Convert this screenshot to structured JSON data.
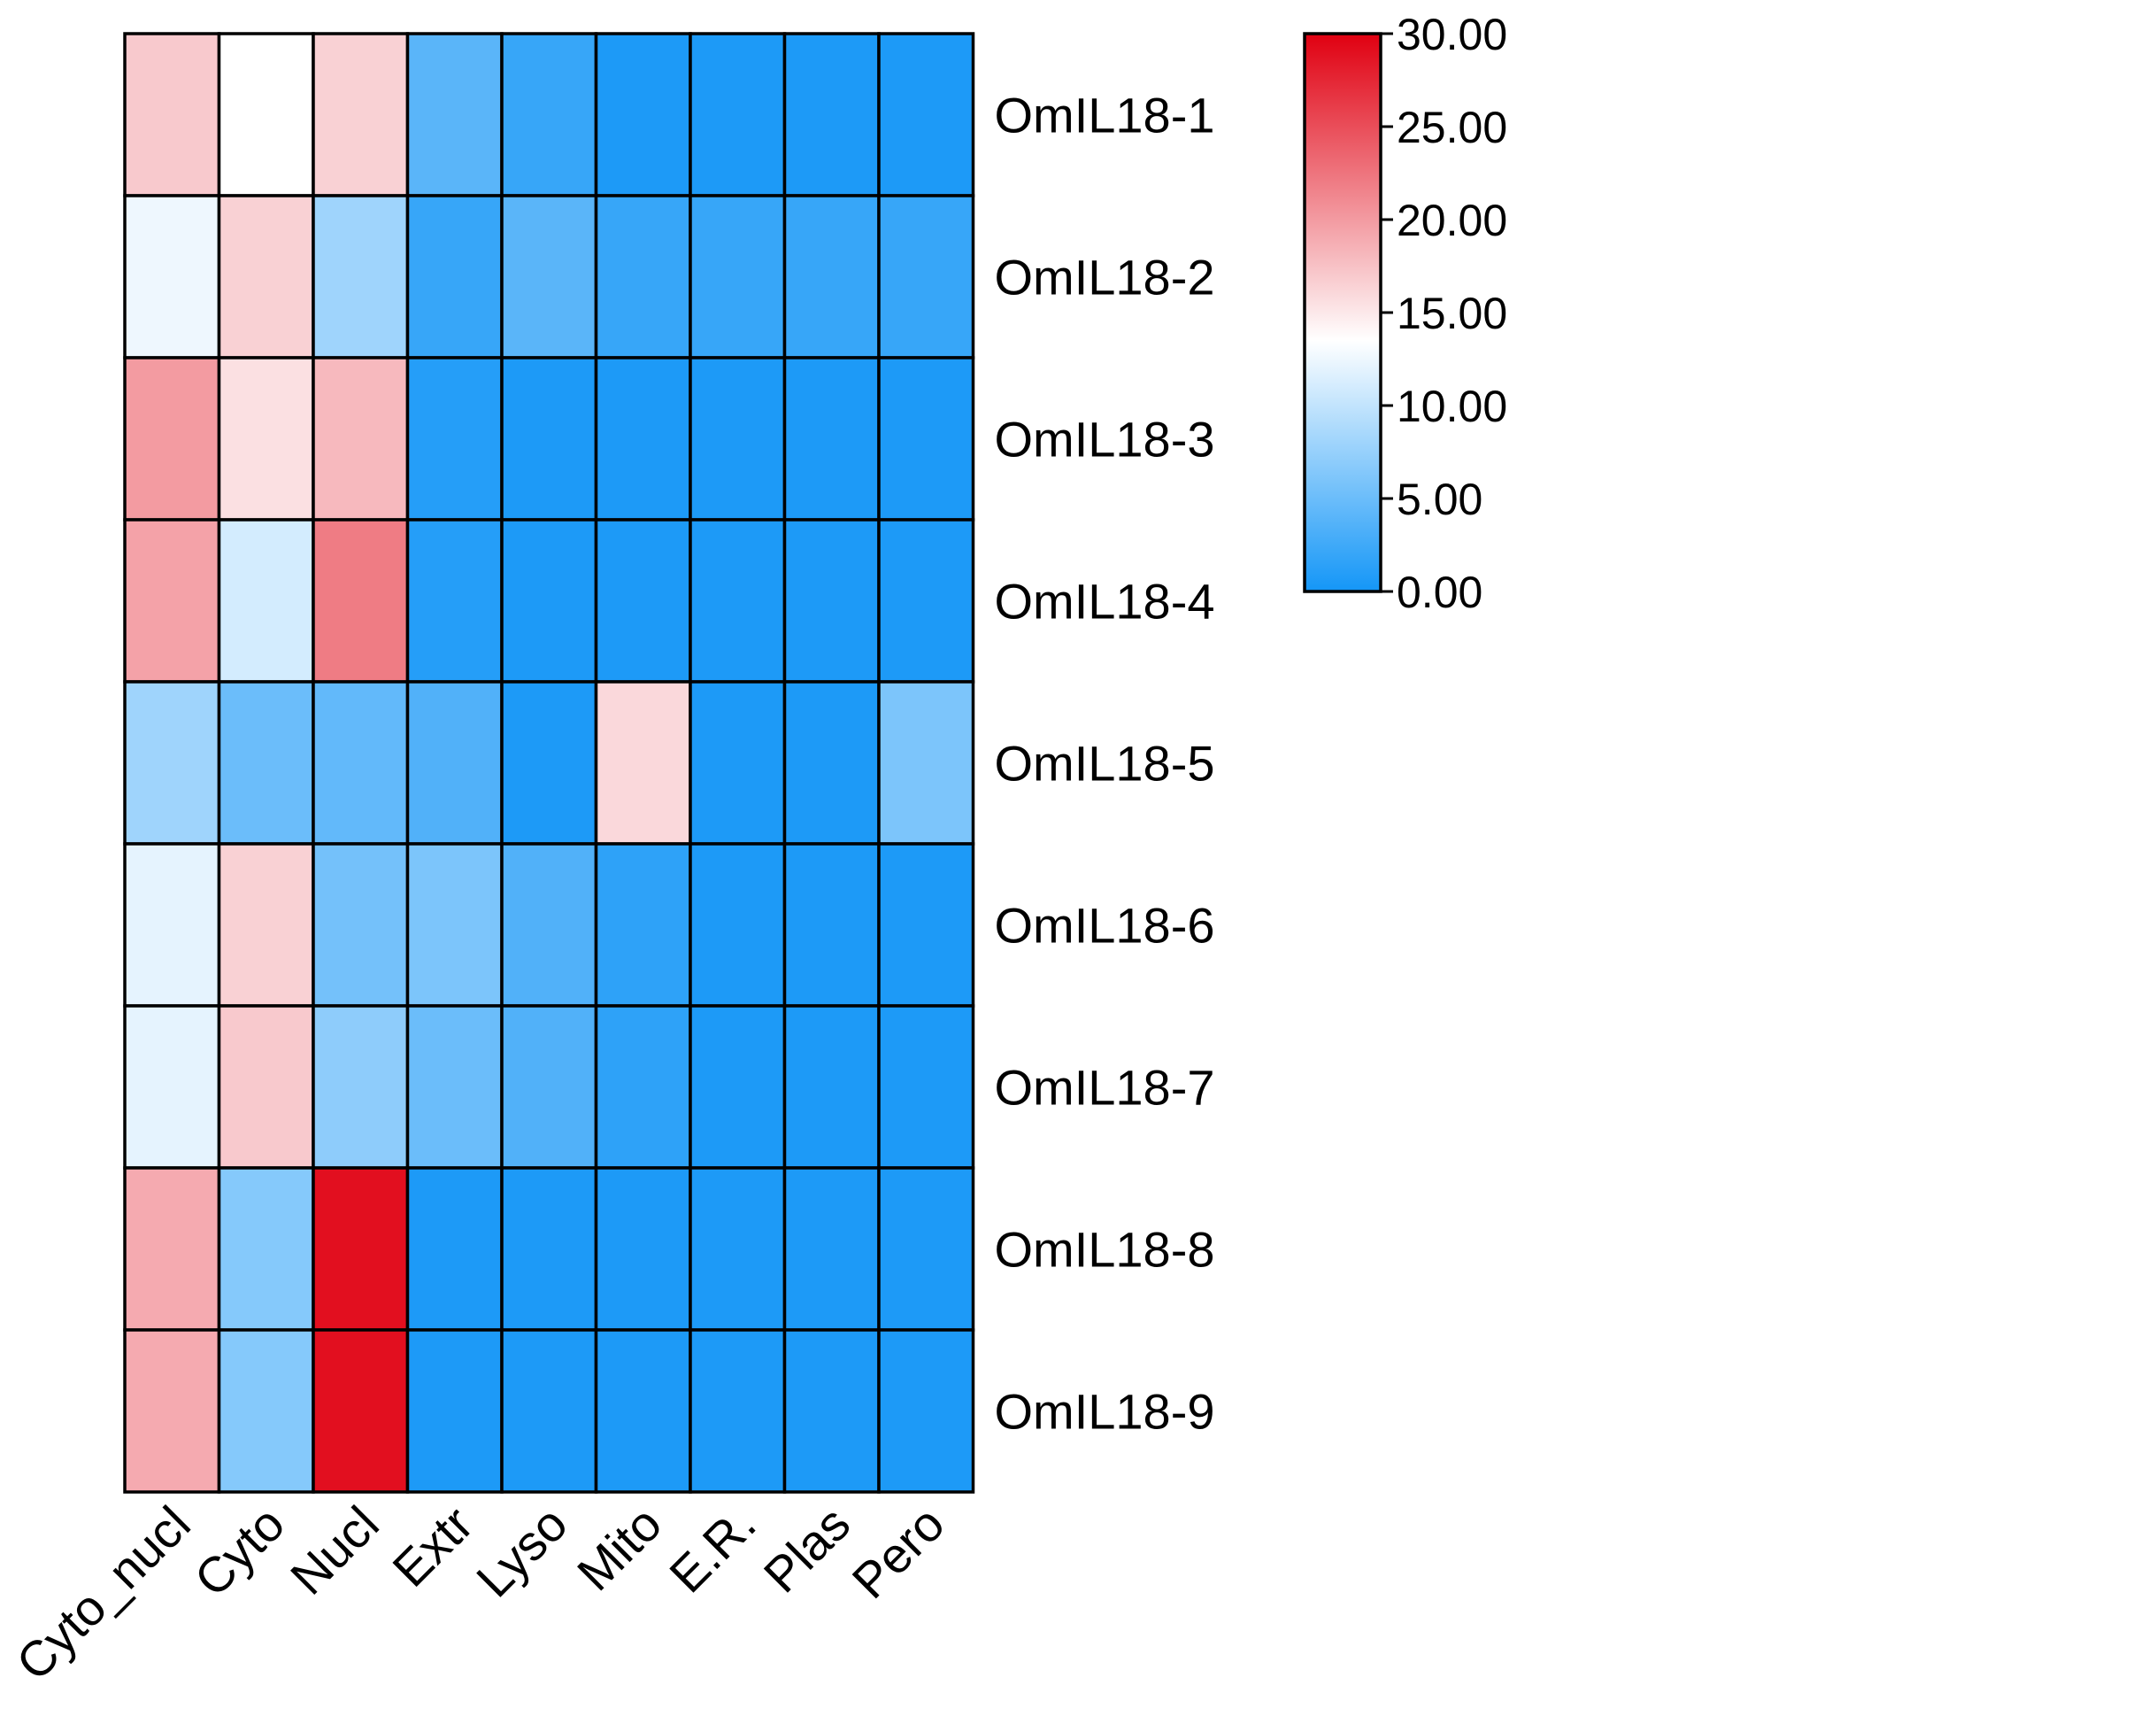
{
  "chart_data": {
    "type": "heatmap",
    "columns": [
      "Cyto_nucl",
      "Cyto",
      "Nucl",
      "Extr",
      "Lyso",
      "Mito",
      "E.R.",
      "Plas",
      "Pero"
    ],
    "rows": [
      "OmIL18-1",
      "OmIL18-2",
      "OmIL18-3",
      "OmIL18-4",
      "OmIL18-5",
      "OmIL18-6",
      "OmIL18-7",
      "OmIL18-8",
      "OmIL18-9"
    ],
    "values": [
      [
        17.0,
        13.5,
        16.5,
        4.0,
        2.0,
        0.5,
        0.5,
        0.5,
        0.5
      ],
      [
        12.5,
        16.5,
        8.0,
        2.0,
        4.0,
        2.0,
        2.0,
        2.0,
        2.0
      ],
      [
        20.0,
        15.5,
        18.0,
        1.0,
        0.5,
        0.5,
        0.5,
        0.5,
        0.5
      ],
      [
        19.5,
        11.0,
        22.0,
        1.0,
        0.5,
        0.5,
        0.5,
        0.5,
        0.5
      ],
      [
        8.0,
        5.0,
        4.5,
        3.5,
        0.5,
        16.0,
        0.5,
        0.5,
        6.0
      ],
      [
        12.0,
        16.5,
        5.5,
        6.0,
        3.5,
        1.5,
        0.5,
        0.5,
        0.5
      ],
      [
        12.0,
        17.0,
        7.0,
        5.0,
        3.5,
        1.5,
        0.5,
        0.5,
        0.5
      ],
      [
        19.0,
        6.5,
        29.0,
        0.5,
        0.5,
        0.5,
        0.5,
        0.5,
        0.5
      ],
      [
        19.0,
        6.5,
        29.0,
        0.5,
        0.5,
        0.5,
        0.5,
        0.5,
        0.5
      ]
    ],
    "colorscale": {
      "min": 0,
      "max": 30,
      "stops": [
        {
          "value": 0,
          "color": "#1496f7"
        },
        {
          "value": 13.5,
          "color": "#ffffff"
        },
        {
          "value": 30,
          "color": "#e00011"
        }
      ],
      "ticks": [
        "30.00",
        "25.00",
        "20.00",
        "15.00",
        "10.00",
        "5.00",
        "0.00"
      ]
    },
    "title": "",
    "xlabel": "",
    "ylabel": "",
    "legend_position": "top-right",
    "grid": true
  }
}
